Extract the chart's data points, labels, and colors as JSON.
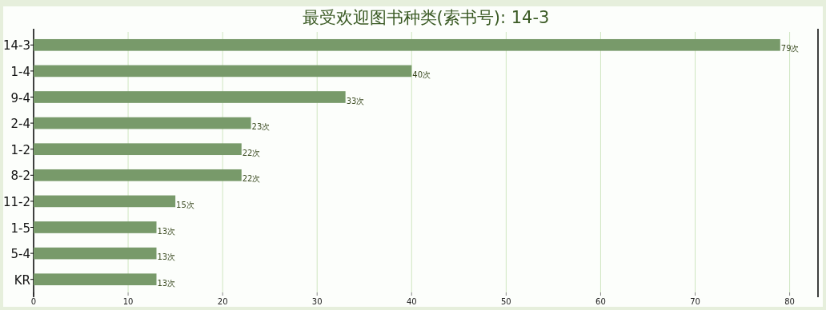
{
  "chart_data": {
    "type": "bar",
    "orientation": "horizontal",
    "title": "最受欢迎图书种类(索书号): 14-3",
    "categories": [
      "14-3",
      "1-4",
      "9-4",
      "2-4",
      "1-2",
      "8-2",
      "11-2",
      "1-5",
      "5-4",
      "KR"
    ],
    "values": [
      79,
      40,
      33,
      23,
      22,
      22,
      15,
      13,
      13,
      13
    ],
    "value_labels": [
      "79次",
      "40次",
      "33次",
      "23次",
      "22次",
      "22次",
      "15次",
      "13次",
      "13次",
      "13次"
    ],
    "color": "#789a6a",
    "xlim": [
      0,
      83
    ],
    "xticks": [
      0,
      10,
      20,
      30,
      40,
      50,
      60,
      70,
      80
    ],
    "grid": "x"
  }
}
